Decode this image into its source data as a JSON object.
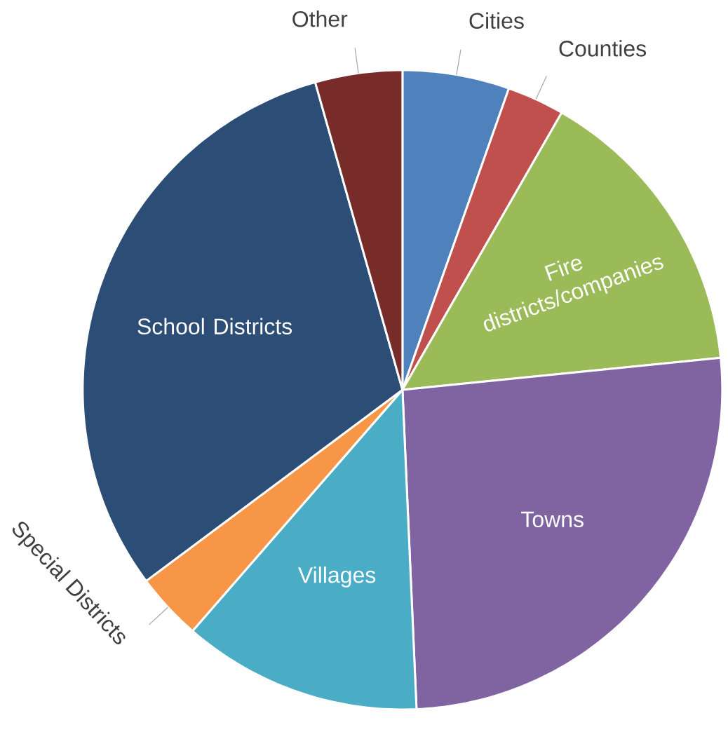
{
  "chart_data": {
    "type": "pie",
    "categories": [
      "Cities",
      "Counties",
      "Fire districts/companies",
      "Towns",
      "Villages",
      "Special Districts",
      "School Districts",
      "Other"
    ],
    "values": [
      5.4,
      2.9,
      15.1,
      25.9,
      12.1,
      3.4,
      30.8,
      4.4
    ],
    "colors": [
      "#4f81bd",
      "#c0504d",
      "#9bbb59",
      "#8064a2",
      "#4bacc6",
      "#f79646",
      "#2c4d75",
      "#772c2a"
    ],
    "legend": false
  }
}
